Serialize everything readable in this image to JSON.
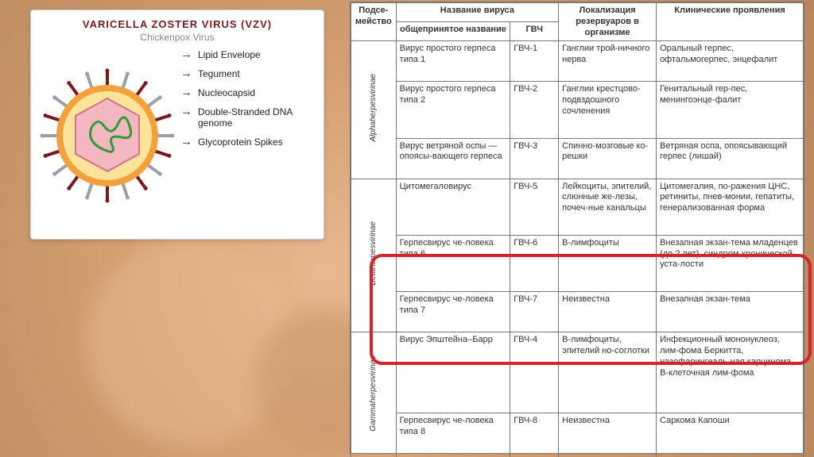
{
  "card": {
    "title": "VARICELLA ZOSTER VIRUS (VZV)",
    "subtitle": "Chickenpox Virus",
    "labels": [
      "Lipid Envelope",
      "Tegument",
      "Nucleocapsid",
      "Double-Stranded DNA genome",
      "Glycoprotein Spikes"
    ],
    "colors": {
      "envelope": "#f2a13c",
      "envelope_stroke": "#c97a1c",
      "tegument": "#fce39a",
      "capsid_fill": "#f3b7c0",
      "capsid_stroke": "#d96f83",
      "dna": "#2e9a3a",
      "spike_dark": "#7a1820",
      "spike_light": "#9aa0a6"
    }
  },
  "table": {
    "headers": {
      "subfamily": "Подсе-\nмейство",
      "virus_name": "Название вируса",
      "common": "общепринятое название",
      "hhv": "ГВЧ",
      "reservoir": "Локализация резервуаров в организме",
      "clinical": "Клинические проявления"
    },
    "subfamilies": [
      {
        "name": "Alphaherpesvirinae",
        "rowspan": 3
      },
      {
        "name": "Betaherpesvirinae",
        "rowspan": 3
      },
      {
        "name": "Gammaherpesvirinae",
        "rowspan": 2
      }
    ],
    "rows": [
      {
        "common": "Вирус простого герпеса типа 1",
        "hhv": "ГВЧ-1",
        "res": "Ганглии трой-ничного нерва",
        "clin": "Оральный герпес, офтальмогерпес, энцефалит"
      },
      {
        "common": "Вирус простого герпеса типа 2",
        "hhv": "ГВЧ-2",
        "res": "Ганглии крестцово-подвздошного сочленения",
        "clin": "Генитальный гер-пес, менингоэнце-фалит"
      },
      {
        "common": "Вирус ветряной оспы — опоясы-вающего герпеса",
        "hhv": "ГВЧ-3",
        "res": "Спинно-мозговые ко-решки",
        "clin": "Ветряная оспа, опоясывающий герпес (лишай)"
      },
      {
        "common": "Цитомегаловирус",
        "hhv": "ГВЧ-5",
        "res": "Лейкоциты, эпителий, слюнные же-лезы, почеч-ные канальцы",
        "clin": "Цитомегалия, по-ражения ЦНС, ретиниты, пнев-монии, гепатиты, генерализованная форма"
      },
      {
        "common": "Герпесвирус че-ловека типа 6",
        "hhv": "ГВЧ-6",
        "res": "В-лимфоциты",
        "clin": "Внезапная экзан-тема младенцев (до 2 лет), синдром хронической уста-лости"
      },
      {
        "common": "Герпесвирус че-ловека типа 7",
        "hhv": "ГВЧ-7",
        "res": "Неизвестна",
        "clin": "Внезапная экзан-тема"
      },
      {
        "common": "Вирус Эпштейна–Барр",
        "hhv": "ГВЧ-4",
        "res": "В-лимфоциты, эпителий но-соглотки",
        "clin": "Инфекционный мононуклеоз, лим-фома Беркитта, назофарингеаль-ная карцинома, В-клеточная лим-фома"
      },
      {
        "common": "Герпесвирус че-ловека типа 8",
        "hhv": "ГВЧ-8",
        "res": "Неизвестна",
        "clin": "Саркома Капоши"
      }
    ],
    "col_widths": {
      "subfam": 28,
      "common": 130,
      "hhv": 50,
      "res": 110,
      "clin": 160
    }
  },
  "highlight": {
    "color": "#d8232a",
    "radius": 16,
    "border_width": 4
  }
}
